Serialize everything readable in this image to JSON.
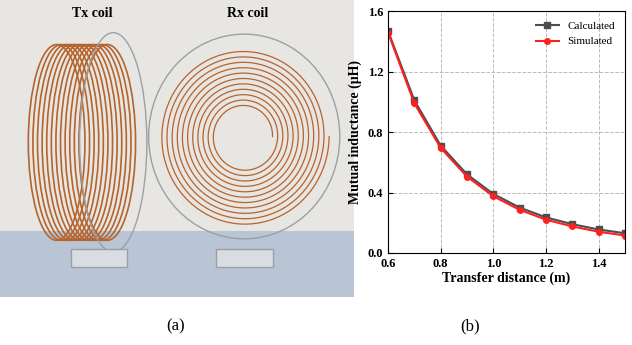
{
  "photo": {
    "labels": [
      "Tx coil",
      "Rx coil"
    ],
    "caption": "(a)"
  },
  "chart_data": {
    "type": "line",
    "caption": "(b)",
    "x_label": "Transfer distance (m)",
    "y_label": "Mutual inductance (μH)",
    "x": [
      0.6,
      0.7,
      0.8,
      0.9,
      1.0,
      1.1,
      1.2,
      1.3,
      1.4,
      1.5
    ],
    "series": [
      {
        "name": "Calculated",
        "color": "#4d4d4d",
        "marker": "square",
        "line_style": "solid",
        "values": [
          1.47,
          1.01,
          0.71,
          0.52,
          0.39,
          0.3,
          0.235,
          0.19,
          0.155,
          0.13
        ]
      },
      {
        "name": "Simulated",
        "color": "#ff2020",
        "marker": "circle",
        "line_style": "solid",
        "values": [
          1.46,
          0.99,
          0.695,
          0.505,
          0.375,
          0.285,
          0.22,
          0.175,
          0.14,
          0.115
        ]
      }
    ],
    "xlim": [
      0.6,
      1.5
    ],
    "xticks": [
      0.6,
      0.8,
      {
        "value": 1.0,
        "label": "1.0"
      },
      1.2,
      1.4
    ],
    "ylim": [
      0.0,
      1.6
    ],
    "yticks": [
      {
        "value": 0.0,
        "label": "0.0"
      },
      0.4,
      0.8,
      1.2,
      1.6
    ],
    "grid": true,
    "legend": "upper right"
  }
}
